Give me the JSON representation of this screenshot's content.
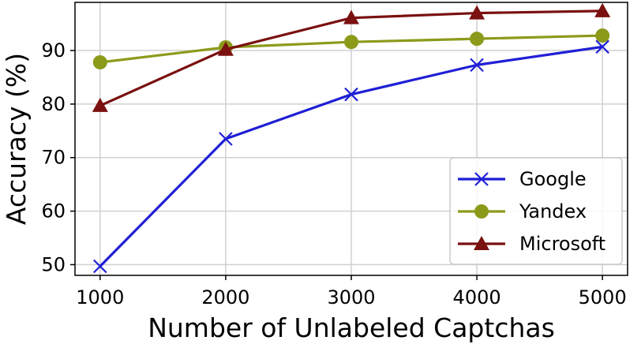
{
  "chart_data": {
    "type": "line",
    "xlabel": "Number of Unlabeled Captchas",
    "ylabel": "Accuracy (%)",
    "x": [
      1000,
      2000,
      3000,
      4000,
      5000
    ],
    "xticks": [
      1000,
      2000,
      3000,
      4000,
      5000
    ],
    "yticks": [
      50,
      60,
      70,
      80,
      90
    ],
    "xlim": [
      800,
      5200
    ],
    "ylim": [
      48,
      99
    ],
    "grid": true,
    "legend_position": "lower-right",
    "series": [
      {
        "name": "Google",
        "marker": "x",
        "color": "#1f1fd6",
        "values": [
          49.7,
          73.5,
          81.8,
          87.3,
          90.7
        ]
      },
      {
        "name": "Yandex",
        "marker": "circle",
        "color": "#8c9a1a",
        "values": [
          87.8,
          90.6,
          91.6,
          92.2,
          92.8
        ]
      },
      {
        "name": "Microsoft",
        "marker": "triangle",
        "color": "#7a1010",
        "values": [
          79.7,
          90.2,
          96.1,
          97.0,
          97.4
        ]
      }
    ]
  }
}
